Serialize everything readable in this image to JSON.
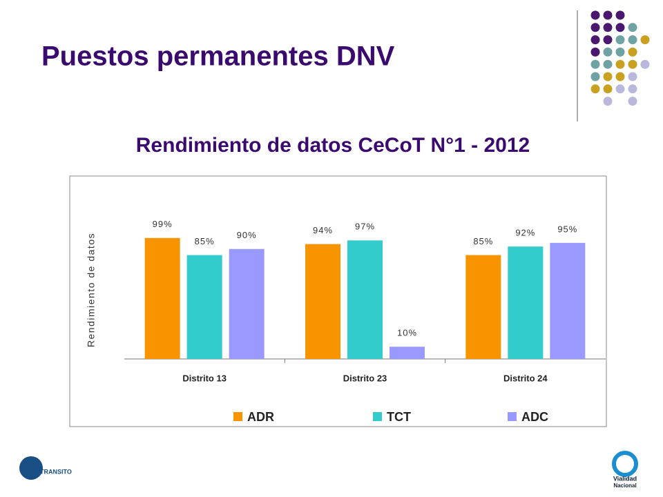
{
  "slide_title": "Puestos permanentes DNV",
  "logos": {
    "left": "TRANSITO",
    "right_line1": "Vialidad",
    "right_line2": "Nacional"
  },
  "chart_data": {
    "type": "bar",
    "title": "Rendimiento de datos CeCoT N°1 - 2012",
    "y_label": "Rendimiento de datos",
    "categories": [
      "Distrito 13",
      "Distrito 23",
      "Distrito 24"
    ],
    "ylim": [
      0,
      100
    ],
    "legend": "bottom",
    "series": [
      {
        "name": "ADR",
        "color": "#f79400",
        "values": [
          99,
          94,
          85
        ],
        "value_labels": [
          "99%",
          "94%",
          "85%"
        ]
      },
      {
        "name": "TCT",
        "color": "#33cccc",
        "values": [
          85,
          97,
          92
        ],
        "value_labels": [
          "85%",
          "97%",
          "92%"
        ]
      },
      {
        "name": "ADC",
        "color": "#9999ff",
        "values": [
          90,
          10,
          95
        ],
        "value_labels": [
          "90%",
          "10%",
          "95%"
        ]
      }
    ]
  }
}
